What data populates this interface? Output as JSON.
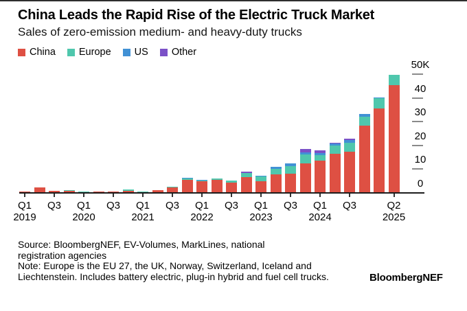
{
  "header": {
    "title": "China Leads the Rapid Rise of the Electric Truck Market",
    "subtitle": "Sales of zero-emission medium- and heavy-duty trucks"
  },
  "chart_data": {
    "type": "bar",
    "stacked": true,
    "unit": "thousand trucks",
    "grid": false,
    "legend_position": "top-left",
    "axis_side": "right",
    "categories": [
      "Q1 2019",
      "Q2 2019",
      "Q3 2019",
      "Q4 2019",
      "Q1 2020",
      "Q2 2020",
      "Q3 2020",
      "Q4 2020",
      "Q1 2021",
      "Q2 2021",
      "Q3 2021",
      "Q4 2021",
      "Q1 2022",
      "Q2 2022",
      "Q3 2022",
      "Q4 2022",
      "Q1 2023",
      "Q2 2023",
      "Q3 2023",
      "Q4 2023",
      "Q1 2024",
      "Q2 2024",
      "Q3 2024",
      "Q4 2024",
      "Q1 2025",
      "Q2 2025"
    ],
    "series": [
      {
        "name": "China",
        "color": "#de5043",
        "values": [
          0.7,
          2.2,
          0.95,
          0.8,
          0.3,
          0.5,
          0.55,
          0.9,
          0.3,
          1.05,
          2.4,
          5.4,
          5.0,
          5.4,
          4.3,
          6.7,
          4.8,
          7.7,
          8.2,
          12.5,
          13.7,
          16.4,
          17.4,
          28.4,
          35.6,
          45.3
        ]
      },
      {
        "name": "Europe",
        "color": "#4fc7ad",
        "values": [
          0,
          0,
          0.05,
          0.35,
          0.15,
          0.1,
          0.15,
          0.5,
          0.15,
          0.15,
          0.25,
          0.8,
          0.35,
          0.6,
          0.8,
          1.7,
          2.2,
          2.4,
          3.1,
          3.6,
          2.2,
          3.6,
          3.7,
          3.6,
          4.4,
          4.3
        ]
      },
      {
        "name": "US",
        "color": "#4191d5",
        "values": [
          0,
          0,
          0,
          0,
          0,
          0,
          0,
          0,
          0,
          0,
          0,
          0.1,
          0.1,
          0.1,
          0.1,
          0.1,
          0.2,
          1.0,
          1.0,
          1.0,
          0.9,
          0.8,
          1.2,
          1.2,
          0.2,
          0.2
        ]
      },
      {
        "name": "Other",
        "color": "#7b51c7",
        "values": [
          0,
          0,
          0,
          0,
          0,
          0,
          0,
          0,
          0,
          0,
          0,
          0,
          0,
          0,
          0,
          0.6,
          0,
          0,
          0,
          1.3,
          1.2,
          0.3,
          0.5,
          0,
          0,
          0
        ]
      }
    ],
    "ylim": [
      0,
      50
    ],
    "yticks": [
      {
        "label": "0",
        "value": 0
      },
      {
        "label": "10",
        "value": 10
      },
      {
        "label": "20",
        "value": 20
      },
      {
        "label": "30",
        "value": 30
      },
      {
        "label": "40",
        "value": 40
      },
      {
        "label": "50K",
        "value": 50
      }
    ],
    "xticks": [
      {
        "quarter": "Q1",
        "year": "2019",
        "bar": 0
      },
      {
        "quarter": "Q3",
        "year": "",
        "bar": 2
      },
      {
        "quarter": "Q1",
        "year": "2020",
        "bar": 4
      },
      {
        "quarter": "Q3",
        "year": "",
        "bar": 6
      },
      {
        "quarter": "Q1",
        "year": "2021",
        "bar": 8
      },
      {
        "quarter": "Q3",
        "year": "",
        "bar": 10
      },
      {
        "quarter": "Q1",
        "year": "2022",
        "bar": 12
      },
      {
        "quarter": "Q3",
        "year": "",
        "bar": 14
      },
      {
        "quarter": "Q1",
        "year": "2023",
        "bar": 16
      },
      {
        "quarter": "Q3",
        "year": "",
        "bar": 18
      },
      {
        "quarter": "Q1",
        "year": "2024",
        "bar": 20
      },
      {
        "quarter": "Q3",
        "year": "",
        "bar": 22
      },
      {
        "quarter": "Q2",
        "year": "2025",
        "bar": 25
      }
    ]
  },
  "footer": {
    "lines": [
      "Source: BloombergNEF, EV-Volumes, MarkLines, national",
      "registration agencies",
      "Note: Europe is the EU 27, the UK, Norway, Switzerland, Iceland and",
      "Liechtenstein. Includes battery electric, plug-in hybrid and fuel cell trucks."
    ],
    "logo": "BloombergNEF"
  }
}
